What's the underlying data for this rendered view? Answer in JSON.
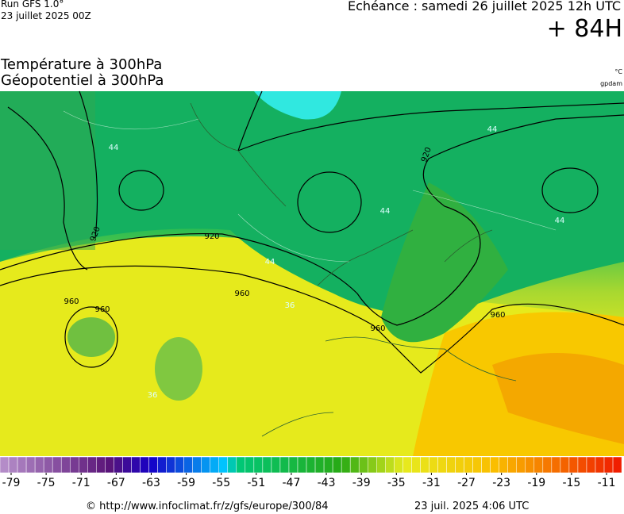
{
  "header": {
    "model": "Run GFS 1.0°",
    "run": "23 juillet 2025 00Z",
    "valid": "Echéance : samedi 26 juillet 2025 12h UTC",
    "lead": "+ 84H"
  },
  "title": {
    "line1": "Température à 300hPa",
    "line2": "Géopotentiel à 300hPa",
    "unit1": "°C",
    "unit2": "gpdam"
  },
  "map": {
    "labels": [
      "920",
      "920",
      "920",
      "960",
      "960",
      "960",
      "960",
      "960",
      "44",
      "44",
      "44",
      "44",
      "44",
      "36",
      "36"
    ]
  },
  "color_scale": {
    "ticks": [
      -79,
      -75,
      -71,
      -67,
      -63,
      -59,
      -55,
      -51,
      -47,
      -43,
      -39,
      -35,
      -31,
      -27,
      -23,
      -19,
      -15,
      -11
    ]
  },
  "footer": {
    "url": "© http://www.infoclimat.fr/z/gfs/europe/300/84",
    "date": "23 juil. 2025  4:06 UTC"
  }
}
